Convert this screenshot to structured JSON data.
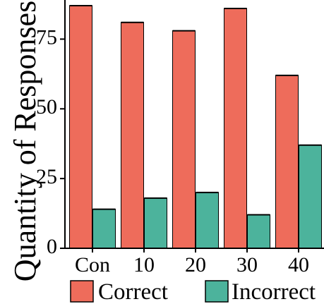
{
  "chart_data": {
    "type": "bar",
    "title": "",
    "xlabel": "",
    "ylabel": "Quantity of Responses",
    "categories": [
      "Con",
      "10",
      "20",
      "30",
      "40"
    ],
    "series": [
      {
        "name": "Correct",
        "color": "#EE6C5B",
        "values": [
          87,
          81,
          78,
          86,
          62
        ]
      },
      {
        "name": "Incorrect",
        "color": "#4CB39C",
        "values": [
          14,
          18,
          20,
          12,
          37
        ]
      }
    ],
    "ylim": [
      0,
      87
    ],
    "yticks": [
      0,
      25,
      50,
      75
    ],
    "grid": false,
    "legend": "bottom"
  }
}
